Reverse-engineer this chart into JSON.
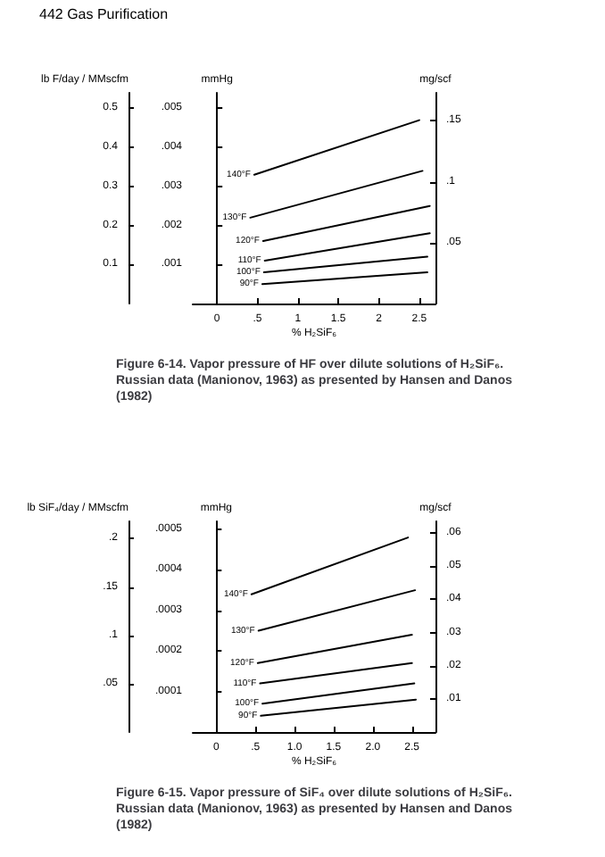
{
  "chart_data": [
    {
      "type": "line",
      "title": "Figure 6-14. Vapor pressure of HF over dilute solutions of H₂SiF₆. Russian data (Manionov, 1963) as presented by Hansen and Danos (1982)",
      "annotations": [
        "442 Gas Purification"
      ],
      "xlabel": "% H₂SiF₆",
      "ylabel": "mmHg",
      "y2label": "mg/scf",
      "y3label": "lb F/day / MMscfm",
      "marker": "none",
      "line_style": "solid",
      "xlim": [
        -0.3,
        2.7
      ],
      "xticks": [
        0,
        {
          "value": 0.5,
          "label": ".5"
        },
        1,
        1.5,
        2,
        2.5
      ],
      "ylim": [
        0,
        0.0054
      ],
      "yticks": [
        {
          "value": 0.001,
          "label": ".001"
        },
        {
          "value": 0.002,
          "label": ".002"
        },
        {
          "value": 0.003,
          "label": ".003"
        },
        {
          "value": 0.004,
          "label": ".004"
        },
        {
          "value": 0.005,
          "label": ".005"
        }
      ],
      "y2lim": [
        0,
        0.173
      ],
      "y2ticks": [
        {
          "value": 0.05,
          "label": ".05"
        },
        {
          "value": 0.1,
          "label": ".1"
        },
        {
          "value": 0.15,
          "label": ".15"
        }
      ],
      "y3lim": [
        0,
        0.54
      ],
      "y3ticks": [
        0.1,
        0.2,
        0.3,
        0.4,
        0.5
      ],
      "series": [
        {
          "name": "140°F",
          "color": "#000000",
          "x": [
            0.46,
            2.5
          ],
          "values": [
            0.0033,
            0.0047
          ]
        },
        {
          "name": "130°F",
          "color": "#000000",
          "x": [
            0.41,
            2.54
          ],
          "values": [
            0.0022,
            0.0034
          ]
        },
        {
          "name": "120°F",
          "color": "#000000",
          "x": [
            0.57,
            2.63
          ],
          "values": [
            0.0016,
            0.0025
          ]
        },
        {
          "name": "110°F",
          "color": "#000000",
          "x": [
            0.59,
            2.63
          ],
          "values": [
            0.0011,
            0.0018
          ]
        },
        {
          "name": "100°F",
          "color": "#000000",
          "x": [
            0.58,
            2.6
          ],
          "values": [
            0.0008,
            0.0012
          ]
        },
        {
          "name": "90°F",
          "color": "#000000",
          "x": [
            0.56,
            2.6
          ],
          "values": [
            0.0005,
            0.0008
          ]
        }
      ]
    },
    {
      "type": "line",
      "title": "Figure 6-15. Vapor pressure of SiF₄ over dilute solutions of H₂SiF₆. Russian data (Manionov, 1963) as presented by Hansen and Danos (1982)",
      "xlabel": "% H₂SiF₆",
      "ylabel": "mmHg",
      "y2label": "mg/scf",
      "y3label": "lb SiF₄/day / MMscfm",
      "marker": "none",
      "line_style": "solid",
      "xlim": [
        -0.3,
        2.8
      ],
      "xticks": [
        0,
        {
          "value": 0.5,
          "label": ".5"
        },
        {
          "value": 1,
          "label": "1.0"
        },
        1.5,
        {
          "value": 2,
          "label": "2.0"
        },
        2.5
      ],
      "ylim": [
        0,
        0.00052
      ],
      "yticks": [
        {
          "value": 0.0001,
          "label": ".0001"
        },
        {
          "value": 0.0002,
          "label": ".0002"
        },
        {
          "value": 0.0003,
          "label": ".0003"
        },
        {
          "value": 0.0004,
          "label": ".0004"
        },
        {
          "value": 0.0005,
          "label": ".0005"
        }
      ],
      "y2lim": [
        0,
        0.0635
      ],
      "y2ticks": [
        {
          "value": 0.01,
          "label": ".01"
        },
        {
          "value": 0.02,
          "label": ".02"
        },
        {
          "value": 0.03,
          "label": ".03"
        },
        {
          "value": 0.04,
          "label": ".04"
        },
        {
          "value": 0.05,
          "label": ".05"
        },
        {
          "value": 0.06,
          "label": ".06"
        }
      ],
      "y3lim": [
        0,
        0.218
      ],
      "y3ticks": [
        {
          "value": 0.05,
          "label": ".05"
        },
        {
          "value": 0.1,
          "label": ".1"
        },
        {
          "value": 0.15,
          "label": ".15"
        },
        {
          "value": 0.2,
          "label": ".2"
        }
      ],
      "series": [
        {
          "name": "140°F",
          "color": "#000000",
          "x": [
            0.45,
            2.45
          ],
          "values": [
            0.00034,
            0.00048
          ]
        },
        {
          "name": "130°F",
          "color": "#000000",
          "x": [
            0.54,
            2.54
          ],
          "values": [
            0.00025,
            0.00035
          ]
        },
        {
          "name": "120°F",
          "color": "#000000",
          "x": [
            0.53,
            2.5
          ],
          "values": [
            0.00017,
            0.00024
          ]
        },
        {
          "name": "110°F",
          "color": "#000000",
          "x": [
            0.56,
            2.5
          ],
          "values": [
            0.00012,
            0.00017
          ]
        },
        {
          "name": "100°F",
          "color": "#000000",
          "x": [
            0.59,
            2.53
          ],
          "values": [
            7e-05,
            0.00012
          ]
        },
        {
          "name": "90°F",
          "color": "#000000",
          "x": [
            0.57,
            2.55
          ],
          "values": [
            4e-05,
            8e-05
          ]
        }
      ]
    }
  ]
}
